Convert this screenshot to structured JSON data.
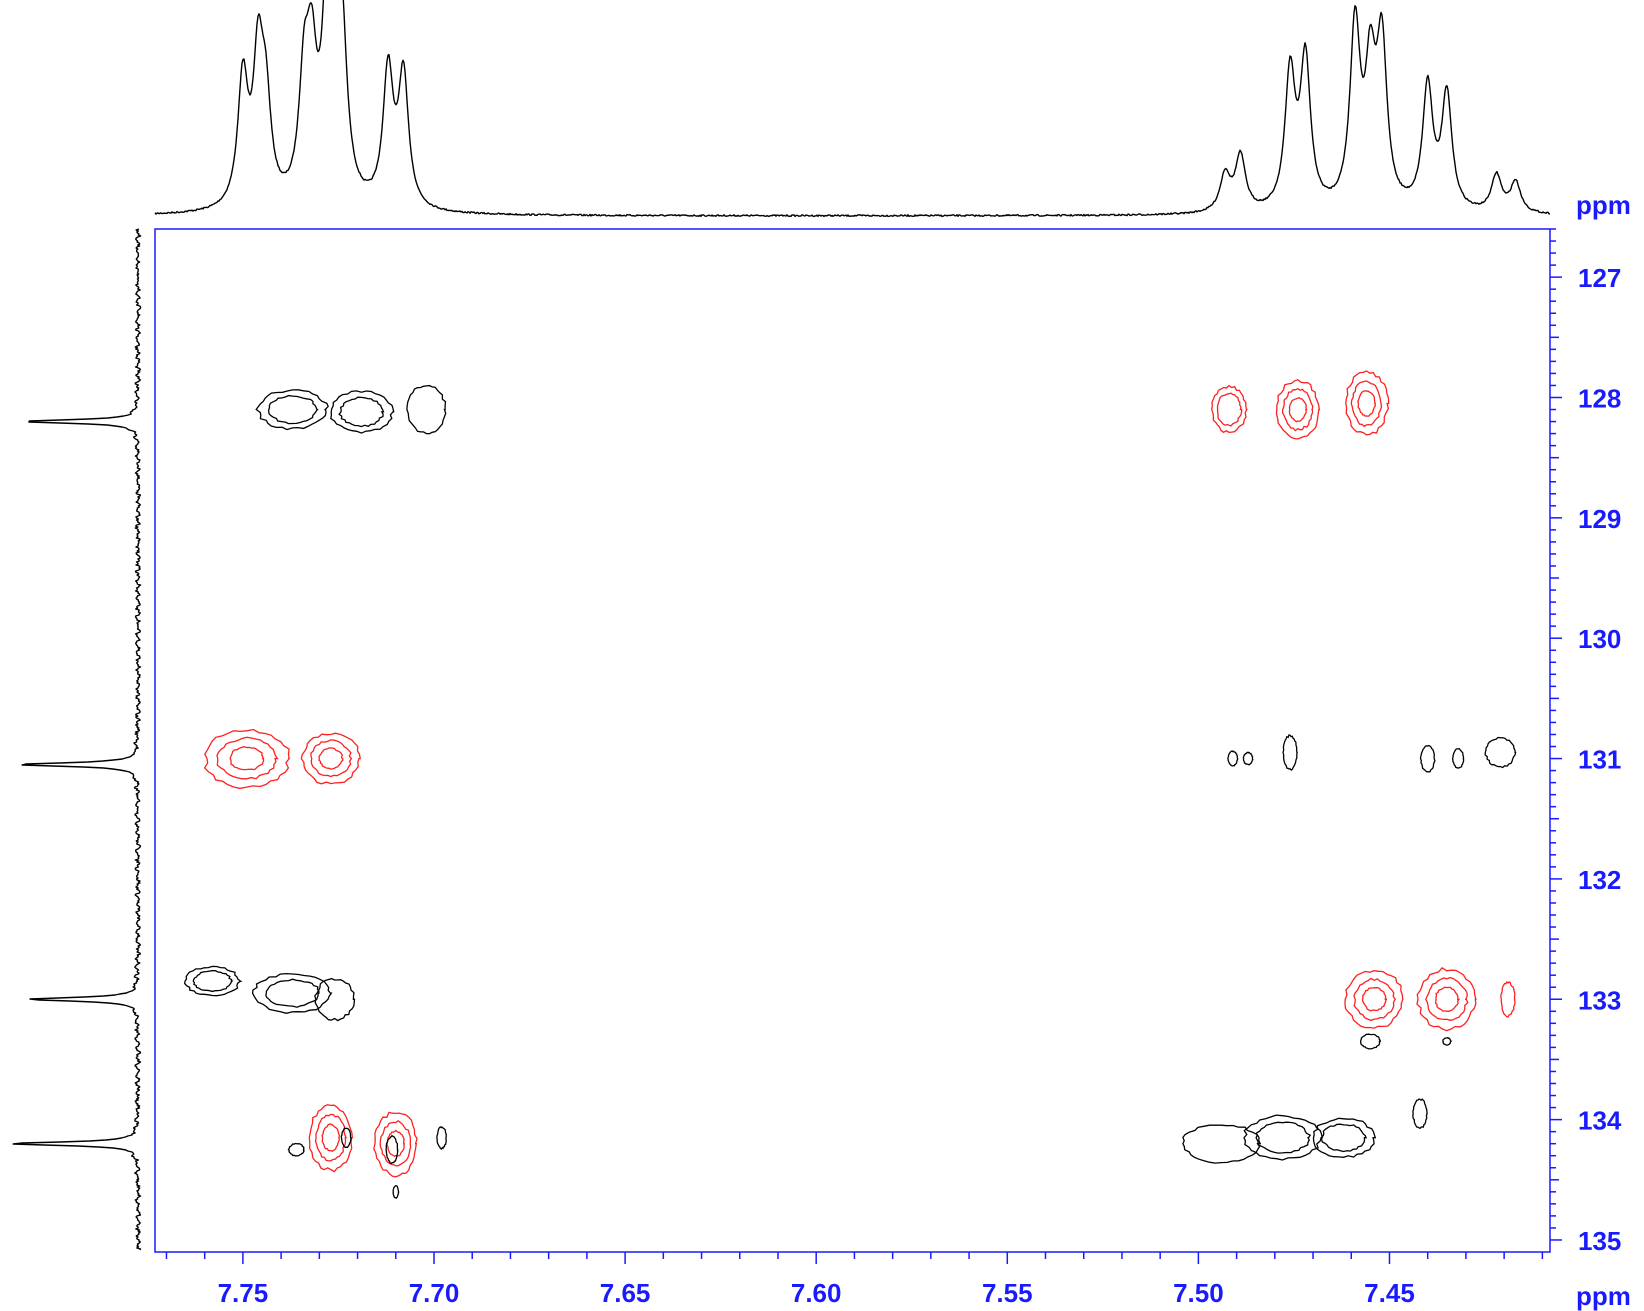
{
  "chart_data": {
    "type": "2d-nmr-contour",
    "x_axis": {
      "unit": "ppm",
      "range": [
        7.773,
        7.408
      ],
      "ticks": [
        7.75,
        7.7,
        7.65,
        7.6,
        7.55,
        7.5,
        7.45
      ],
      "tick_labels": [
        "7.75",
        "7.70",
        "7.65",
        "7.60",
        "7.55",
        "7.50",
        "7.45"
      ],
      "minor_step": 0.01
    },
    "y_axis": {
      "unit": "ppm",
      "range": [
        126.6,
        135.1
      ],
      "ticks": [
        127,
        128,
        129,
        130,
        131,
        132,
        133,
        134,
        135
      ],
      "tick_labels": [
        "127",
        "128",
        "129",
        "130",
        "131",
        "132",
        "133",
        "134",
        "135"
      ],
      "minor_step": 0.1
    },
    "top_projection_peaks": [
      {
        "x": 7.75,
        "h": 0.62
      },
      {
        "x": 7.746,
        "h": 0.68
      },
      {
        "x": 7.744,
        "h": 0.45
      },
      {
        "x": 7.734,
        "h": 0.55
      },
      {
        "x": 7.732,
        "h": 0.6
      },
      {
        "x": 7.728,
        "h": 0.78
      },
      {
        "x": 7.726,
        "h": 0.95
      },
      {
        "x": 7.724,
        "h": 0.6
      },
      {
        "x": 7.712,
        "h": 0.66
      },
      {
        "x": 7.708,
        "h": 0.64
      },
      {
        "x": 7.493,
        "h": 0.18
      },
      {
        "x": 7.489,
        "h": 0.27
      },
      {
        "x": 7.476,
        "h": 0.66
      },
      {
        "x": 7.472,
        "h": 0.72
      },
      {
        "x": 7.459,
        "h": 0.88
      },
      {
        "x": 7.455,
        "h": 0.62
      },
      {
        "x": 7.452,
        "h": 0.78
      },
      {
        "x": 7.44,
        "h": 0.6
      },
      {
        "x": 7.435,
        "h": 0.56
      },
      {
        "x": 7.422,
        "h": 0.18
      },
      {
        "x": 7.417,
        "h": 0.15
      }
    ],
    "side_projection_peaks": [
      {
        "y": 128.2,
        "h": 0.9
      },
      {
        "y": 131.05,
        "h": 0.95
      },
      {
        "y": 133.0,
        "h": 0.86
      },
      {
        "y": 134.2,
        "h": 1.0
      }
    ],
    "contours_positive": [
      {
        "x": 7.749,
        "y": 131.0,
        "rx": 0.011,
        "ry": 0.24,
        "levels": 3
      },
      {
        "x": 7.727,
        "y": 131.0,
        "rx": 0.0075,
        "ry": 0.21,
        "levels": 3
      },
      {
        "x": 7.492,
        "y": 128.1,
        "rx": 0.0045,
        "ry": 0.19,
        "levels": 2
      },
      {
        "x": 7.474,
        "y": 128.1,
        "rx": 0.0055,
        "ry": 0.24,
        "levels": 3
      },
      {
        "x": 7.456,
        "y": 128.05,
        "rx": 0.0055,
        "ry": 0.26,
        "levels": 3
      },
      {
        "x": 7.454,
        "y": 133.0,
        "rx": 0.0075,
        "ry": 0.24,
        "levels": 3
      },
      {
        "x": 7.435,
        "y": 133.0,
        "rx": 0.0075,
        "ry": 0.25,
        "levels": 3
      },
      {
        "x": 7.419,
        "y": 133.0,
        "rx": 0.0018,
        "ry": 0.14,
        "levels": 1
      },
      {
        "x": 7.727,
        "y": 134.15,
        "rx": 0.0055,
        "ry": 0.27,
        "levels": 3
      },
      {
        "x": 7.71,
        "y": 134.2,
        "rx": 0.0055,
        "ry": 0.26,
        "levels": 3
      }
    ],
    "contours_negative": [
      {
        "x": 7.737,
        "y": 128.1,
        "rx": 0.009,
        "ry": 0.16,
        "levels": 2
      },
      {
        "x": 7.719,
        "y": 128.12,
        "rx": 0.008,
        "ry": 0.17,
        "levels": 2
      },
      {
        "x": 7.702,
        "y": 128.1,
        "rx": 0.005,
        "ry": 0.2,
        "levels": 1
      },
      {
        "x": 7.758,
        "y": 132.85,
        "rx": 0.007,
        "ry": 0.12,
        "levels": 2
      },
      {
        "x": 7.737,
        "y": 132.95,
        "rx": 0.01,
        "ry": 0.16,
        "levels": 2
      },
      {
        "x": 7.726,
        "y": 133.0,
        "rx": 0.005,
        "ry": 0.17,
        "levels": 1
      },
      {
        "x": 7.491,
        "y": 131.0,
        "rx": 0.0012,
        "ry": 0.06,
        "levels": 1
      },
      {
        "x": 7.487,
        "y": 131.0,
        "rx": 0.0012,
        "ry": 0.05,
        "levels": 1
      },
      {
        "x": 7.476,
        "y": 130.95,
        "rx": 0.0018,
        "ry": 0.14,
        "levels": 1
      },
      {
        "x": 7.44,
        "y": 131.0,
        "rx": 0.0018,
        "ry": 0.11,
        "levels": 1
      },
      {
        "x": 7.432,
        "y": 131.0,
        "rx": 0.0014,
        "ry": 0.08,
        "levels": 1
      },
      {
        "x": 7.421,
        "y": 130.95,
        "rx": 0.0038,
        "ry": 0.12,
        "levels": 1
      },
      {
        "x": 7.455,
        "y": 133.35,
        "rx": 0.0025,
        "ry": 0.06,
        "levels": 1
      },
      {
        "x": 7.435,
        "y": 133.35,
        "rx": 0.001,
        "ry": 0.03,
        "levels": 1
      },
      {
        "x": 7.442,
        "y": 133.95,
        "rx": 0.0018,
        "ry": 0.12,
        "levels": 1
      },
      {
        "x": 7.494,
        "y": 134.2,
        "rx": 0.01,
        "ry": 0.16,
        "levels": 1
      },
      {
        "x": 7.478,
        "y": 134.15,
        "rx": 0.01,
        "ry": 0.18,
        "levels": 2
      },
      {
        "x": 7.462,
        "y": 134.15,
        "rx": 0.008,
        "ry": 0.16,
        "levels": 2
      },
      {
        "x": 7.736,
        "y": 134.25,
        "rx": 0.002,
        "ry": 0.05,
        "levels": 1
      },
      {
        "x": 7.723,
        "y": 134.15,
        "rx": 0.0012,
        "ry": 0.08,
        "levels": 1
      },
      {
        "x": 7.711,
        "y": 134.25,
        "rx": 0.0015,
        "ry": 0.11,
        "levels": 1
      },
      {
        "x": 7.698,
        "y": 134.15,
        "rx": 0.0012,
        "ry": 0.09,
        "levels": 1
      },
      {
        "x": 7.71,
        "y": 134.6,
        "rx": 0.0007,
        "ry": 0.05,
        "levels": 1
      }
    ],
    "colors": {
      "positive": "#ff2020",
      "negative": "#000000",
      "axis": "#1a1aff",
      "trace": "#000000"
    },
    "x_unit_label": "ppm",
    "y_unit_label": "ppm"
  }
}
